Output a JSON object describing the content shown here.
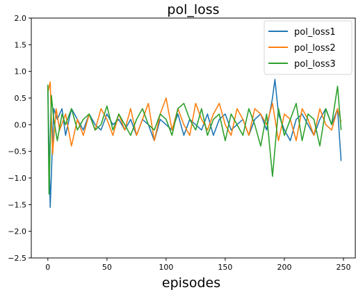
{
  "chart_data": {
    "type": "line",
    "title": "pol_loss",
    "xlabel": "episodes",
    "ylabel": "",
    "xlim": [
      -14,
      260
    ],
    "ylim": [
      -2.5,
      2.0
    ],
    "xticks": [
      0,
      50,
      100,
      150,
      200,
      250
    ],
    "yticks": [
      -2.5,
      -2.0,
      -1.5,
      -1.0,
      -0.5,
      0.0,
      0.5,
      1.0,
      1.5,
      2.0
    ],
    "xtick_labels": [
      "0",
      "50",
      "100",
      "150",
      "200",
      "250"
    ],
    "ytick_labels": [
      "−2.5",
      "−2.0",
      "−1.5",
      "−1.0",
      "−0.5",
      "0.0",
      "0.5",
      "1.0",
      "1.5",
      "2.0"
    ],
    "grid": false,
    "legend_position": "top-right",
    "series": [
      {
        "name": "pol_loss1",
        "color": "#1f77b4",
        "x": [
          0,
          2,
          5,
          8,
          12,
          15,
          20,
          25,
          30,
          35,
          40,
          45,
          50,
          55,
          60,
          65,
          70,
          75,
          80,
          85,
          90,
          95,
          100,
          105,
          110,
          115,
          120,
          125,
          130,
          135,
          140,
          145,
          150,
          155,
          160,
          165,
          170,
          175,
          180,
          185,
          190,
          192,
          195,
          200,
          205,
          210,
          215,
          220,
          225,
          230,
          235,
          240,
          245,
          248
        ],
        "values": [
          0.7,
          -1.55,
          0.3,
          0.1,
          0.3,
          -0.2,
          0.3,
          0.1,
          -0.1,
          0.2,
          0.0,
          -0.1,
          0.2,
          0.0,
          0.1,
          -0.1,
          0.1,
          -0.2,
          0.1,
          0.0,
          -0.3,
          0.1,
          0.0,
          -0.1,
          0.2,
          -0.2,
          0.1,
          0.0,
          -0.1,
          0.2,
          -0.2,
          0.1,
          0.2,
          -0.1,
          0.0,
          0.1,
          -0.2,
          0.1,
          0.2,
          -0.1,
          0.5,
          0.85,
          0.2,
          -0.1,
          -0.3,
          0.1,
          0.2,
          0.0,
          -0.2,
          0.1,
          0.3,
          0.0,
          0.3,
          -0.68
        ]
      },
      {
        "name": "pol_loss2",
        "color": "#ff7f0e",
        "x": [
          0,
          2,
          4,
          7,
          10,
          15,
          20,
          25,
          30,
          35,
          40,
          45,
          50,
          55,
          60,
          65,
          70,
          75,
          80,
          85,
          90,
          95,
          100,
          105,
          110,
          115,
          120,
          125,
          130,
          135,
          140,
          145,
          150,
          155,
          160,
          165,
          170,
          175,
          180,
          185,
          190,
          195,
          200,
          205,
          210,
          215,
          220,
          225,
          230,
          235,
          240,
          245,
          248
        ],
        "values": [
          0.6,
          0.8,
          -0.55,
          0.3,
          -0.1,
          0.2,
          -0.4,
          0.1,
          -0.2,
          0.2,
          -0.1,
          0.3,
          0.1,
          -0.2,
          0.2,
          -0.1,
          0.3,
          -0.2,
          0.1,
          0.4,
          -0.3,
          0.2,
          0.5,
          -0.1,
          0.3,
          0.0,
          -0.2,
          0.4,
          0.1,
          -0.1,
          0.2,
          0.4,
          0.0,
          -0.2,
          0.3,
          0.1,
          -0.2,
          0.3,
          0.2,
          0.0,
          0.4,
          -0.3,
          0.2,
          0.1,
          -0.3,
          0.3,
          0.1,
          -0.2,
          0.3,
          0.0,
          -0.1,
          0.3,
          0.05
        ]
      },
      {
        "name": "pol_loss3",
        "color": "#2ca02c",
        "x": [
          0,
          1,
          3,
          5,
          8,
          12,
          15,
          20,
          25,
          30,
          35,
          40,
          45,
          50,
          55,
          60,
          65,
          70,
          75,
          80,
          85,
          90,
          95,
          100,
          105,
          110,
          115,
          120,
          125,
          130,
          135,
          140,
          145,
          150,
          155,
          160,
          165,
          170,
          175,
          180,
          185,
          190,
          195,
          200,
          205,
          210,
          215,
          220,
          225,
          230,
          235,
          240,
          245,
          248
        ],
        "values": [
          0.75,
          -1.3,
          0.55,
          0.1,
          -0.3,
          0.2,
          0.0,
          0.3,
          -0.1,
          0.1,
          0.2,
          -0.1,
          0.0,
          0.35,
          -0.1,
          0.2,
          0.0,
          -0.2,
          0.1,
          0.3,
          0.0,
          -0.1,
          0.2,
          0.1,
          -0.2,
          0.3,
          0.4,
          0.1,
          -0.1,
          0.3,
          -0.2,
          0.1,
          0.2,
          -0.3,
          0.2,
          0.0,
          -0.2,
          0.3,
          0.0,
          -0.4,
          0.2,
          -0.97,
          0.3,
          -0.2,
          0.1,
          0.4,
          -0.3,
          0.2,
          0.1,
          -0.4,
          0.3,
          0.0,
          0.72,
          -0.1
        ]
      }
    ]
  }
}
